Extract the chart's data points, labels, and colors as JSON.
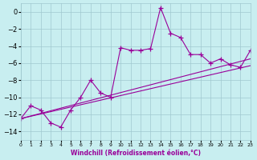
{
  "xlabel": "Windchill (Refroidissement éolien,°C)",
  "bg_color": "#c8eef0",
  "grid_color": "#a0c8d0",
  "line_color": "#990099",
  "xlim": [
    0,
    23
  ],
  "ylim": [
    -15,
    1
  ],
  "yticks": [
    0,
    -2,
    -4,
    -6,
    -8,
    -10,
    -12,
    -14
  ],
  "xticks": [
    0,
    1,
    2,
    3,
    4,
    5,
    6,
    7,
    8,
    9,
    10,
    11,
    12,
    13,
    14,
    15,
    16,
    17,
    18,
    19,
    20,
    21,
    22,
    23
  ],
  "series1_x": [
    0,
    1,
    2,
    3,
    4,
    5,
    6,
    7,
    8,
    9,
    10,
    11,
    12,
    13,
    14,
    15,
    16,
    17,
    18,
    19,
    20,
    21,
    22,
    23
  ],
  "series1_y": [
    -12.5,
    -11.0,
    -11.5,
    -13.0,
    -13.5,
    -11.5,
    -10.0,
    -8.0,
    -9.5,
    -10.0,
    -4.2,
    -4.5,
    -4.5,
    -4.3,
    0.5,
    -2.5,
    -3.0,
    -5.0,
    -5.0,
    -6.0,
    -5.5,
    -6.2,
    -6.5,
    -4.5
  ],
  "series2_x": [
    0,
    23
  ],
  "series2_y": [
    -12.5,
    -5.5
  ],
  "series3_x": [
    0,
    23
  ],
  "series3_y": [
    -12.5,
    -6.3
  ]
}
